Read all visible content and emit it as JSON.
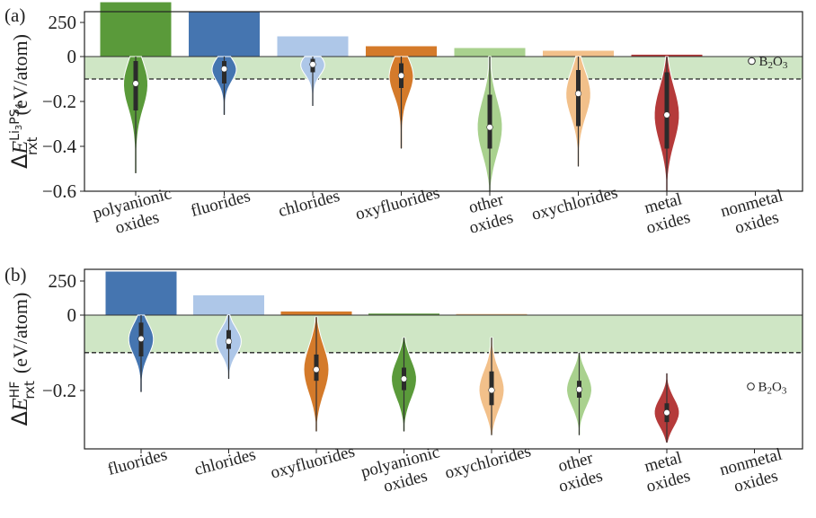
{
  "chart_data": [
    {
      "type": "bar+violin",
      "panel_label": "(a)",
      "ylabel": "ΔE rxt Li3PS4 (eV/atom)",
      "ylabel_parts": {
        "delta": "Δ",
        "main": "E",
        "sub": "rxt",
        "sup": "Li",
        "sup_sub3": "3",
        "sup_mid": "PS",
        "sup_sub4": "4",
        "units": "(eV/atom)"
      },
      "yticks": [
        "250",
        "0",
        "−0.2",
        "−0.4",
        "−0.6"
      ],
      "threshold": -0.1,
      "shaded_band": [
        -0.1,
        0
      ],
      "categories": [
        {
          "lines": [
            "polyanionic",
            "oxides"
          ],
          "color": "#5a9a3a",
          "count": 300,
          "min": -0.52,
          "max": 0.0,
          "q1": -0.24,
          "median": -0.12,
          "q3": -0.02
        },
        {
          "lines": [
            "fluorides"
          ],
          "color": "#4575b0",
          "count": 245,
          "min": -0.26,
          "max": 0.0,
          "q1": -0.12,
          "median": -0.055,
          "q3": -0.02
        },
        {
          "lines": [
            "chlorides"
          ],
          "color": "#aec7e8",
          "count": 110,
          "min": -0.22,
          "max": 0.0,
          "q1": -0.07,
          "median": -0.035,
          "q3": -0.01
        },
        {
          "lines": [
            "oxyfluorides"
          ],
          "color": "#d47a2a",
          "count": 55,
          "min": -0.41,
          "max": 0.0,
          "q1": -0.14,
          "median": -0.085,
          "q3": -0.03
        },
        {
          "lines": [
            "other",
            "oxides"
          ],
          "color": "#a9d18e",
          "count": 45,
          "min": -0.6,
          "max": 0.0,
          "q1": -0.41,
          "median": -0.315,
          "q3": -0.17
        },
        {
          "lines": [
            "oxychlorides"
          ],
          "color": "#f2c08a",
          "count": 30,
          "min": -0.49,
          "max": 0.0,
          "q1": -0.31,
          "median": -0.165,
          "q3": -0.06
        },
        {
          "lines": [
            "metal",
            "oxides"
          ],
          "color": "#b53a3a",
          "count": 8,
          "min": -0.6,
          "max": 0.0,
          "q1": -0.41,
          "median": -0.26,
          "q3": -0.07
        },
        {
          "lines": [
            "nonmetal",
            "oxides"
          ],
          "color": "#cccccc",
          "count": 0,
          "point": -0.02,
          "point_label": "B2O3"
        }
      ]
    },
    {
      "type": "bar+violin",
      "panel_label": "(b)",
      "ylabel": "ΔE rxt HF (eV/atom)",
      "ylabel_parts": {
        "delta": "Δ",
        "main": "E",
        "sub": "rxt",
        "sup": "HF",
        "units": "(eV/atom)"
      },
      "yticks": [
        "250",
        "0",
        "−0.2"
      ],
      "threshold": -0.1,
      "shaded_band": [
        -0.1,
        0
      ],
      "categories": [
        {
          "lines": [
            "fluorides"
          ],
          "color": "#4575b0",
          "count": 245,
          "min": -0.205,
          "max": 0.0,
          "q1": -0.11,
          "median": -0.063,
          "q3": -0.02
        },
        {
          "lines": [
            "chlorides"
          ],
          "color": "#aec7e8",
          "count": 110,
          "min": -0.17,
          "max": 0.0,
          "q1": -0.09,
          "median": -0.07,
          "q3": -0.04
        },
        {
          "lines": [
            "oxyfluorides"
          ],
          "color": "#d47a2a",
          "count": 18,
          "min": -0.31,
          "max": -0.005,
          "q1": -0.175,
          "median": -0.145,
          "q3": -0.105
        },
        {
          "lines": [
            "polyanionic",
            "oxides"
          ],
          "color": "#5a9a3a",
          "count": 6,
          "min": -0.31,
          "max": -0.06,
          "q1": -0.2,
          "median": -0.17,
          "q3": -0.14
        },
        {
          "lines": [
            "oxychlorides"
          ],
          "color": "#f2c08a",
          "count": 4,
          "min": -0.32,
          "max": -0.06,
          "q1": -0.24,
          "median": -0.2,
          "q3": -0.15
        },
        {
          "lines": [
            "other",
            "oxides"
          ],
          "color": "#a9d18e",
          "count": 0,
          "min": -0.32,
          "max": -0.1,
          "q1": -0.22,
          "median": -0.198,
          "q3": -0.175
        },
        {
          "lines": [
            "metal",
            "oxides"
          ],
          "color": "#b53a3a",
          "count": 0,
          "min": -0.34,
          "max": -0.155,
          "q1": -0.285,
          "median": -0.26,
          "q3": -0.235
        },
        {
          "lines": [
            "nonmetal",
            "oxides"
          ],
          "color": "#cccccc",
          "count": 0,
          "point": -0.19,
          "point_label": "B2O3"
        }
      ]
    }
  ]
}
